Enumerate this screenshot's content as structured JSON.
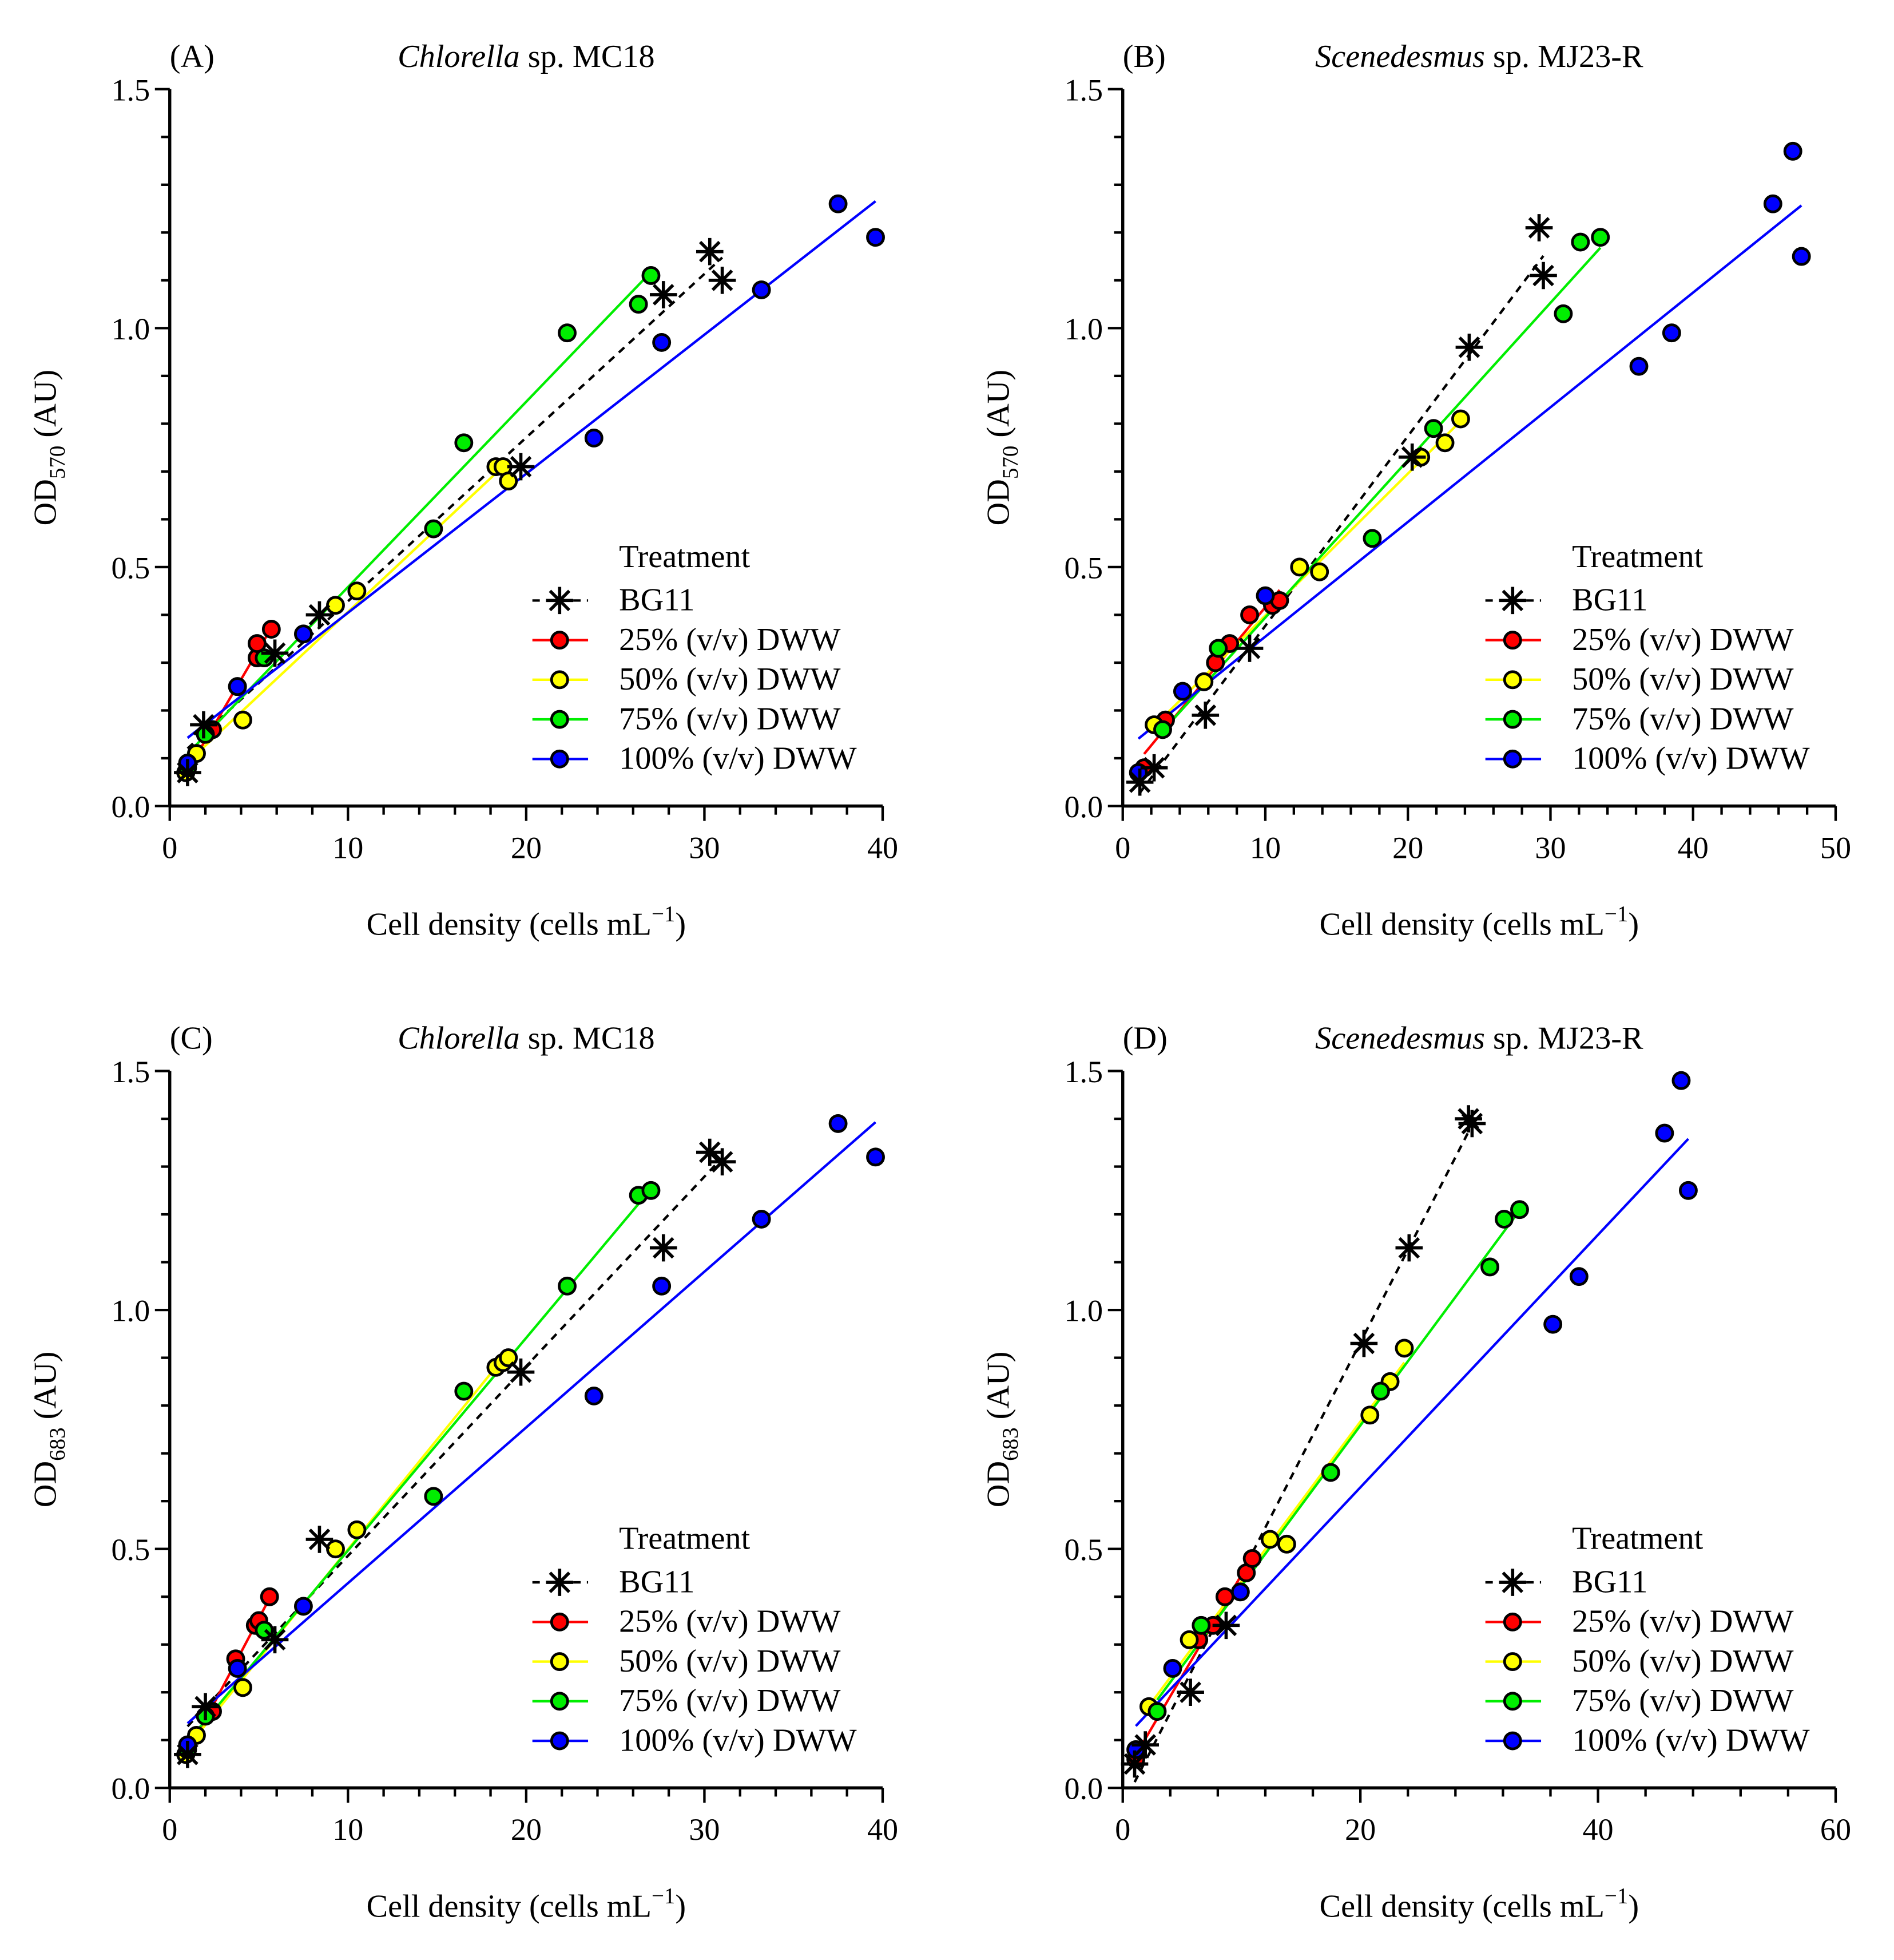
{
  "colors": {
    "BG11": "#000000",
    "25%": "#ff0000",
    "50%": "#ffff00",
    "75%": "#00ee00",
    "100%": "#0000ff"
  },
  "legend": {
    "title": "Treatment",
    "entries": [
      {
        "key": "BG11",
        "label": "BG11",
        "marker": "star",
        "dashed": true
      },
      {
        "key": "25%",
        "label": "25% (v/v) DWW",
        "marker": "circle",
        "dashed": false
      },
      {
        "key": "50%",
        "label": "50% (v/v) DWW",
        "marker": "circle",
        "dashed": false
      },
      {
        "key": "75%",
        "label": "75% (v/v) DWW",
        "marker": "circle",
        "dashed": false
      },
      {
        "key": "100%",
        "label": "100% (v/v) DWW",
        "marker": "circle",
        "dashed": false
      }
    ]
  },
  "chart_data": [
    {
      "type": "scatter",
      "panel": "(A)",
      "title_genus": "Chlorella",
      "title_rest": " sp. MC18",
      "ylabel_main": "OD",
      "ylabel_sub": "570",
      "ylabel_unit": " (AU)",
      "xlabel": "Cell density (cells mL",
      "xlabel_sup": "−1",
      "xlabel_end": ")",
      "xlim": [
        0,
        40
      ],
      "xticks": [
        0,
        10,
        20,
        30,
        40
      ],
      "ylim": [
        0,
        1.5
      ],
      "yticks": [
        "0.0",
        "0.5",
        "1.0",
        "1.5"
      ],
      "series": [
        {
          "name": "BG11",
          "x": [
            1.0,
            1.9,
            5.9,
            8.4,
            19.7,
            27.7,
            30.3,
            31.0
          ],
          "y": [
            0.07,
            0.17,
            0.32,
            0.4,
            0.71,
            1.07,
            1.16,
            1.1
          ]
        },
        {
          "name": "25%",
          "x": [
            0.9,
            2.4,
            3.8,
            4.9,
            4.9,
            5.7
          ],
          "y": [
            0.07,
            0.16,
            0.25,
            0.31,
            0.34,
            0.37
          ]
        },
        {
          "name": "50%",
          "x": [
            0.9,
            1.5,
            4.1,
            9.3,
            10.5,
            18.3,
            18.7,
            19.0
          ],
          "y": [
            0.07,
            0.11,
            0.18,
            0.42,
            0.45,
            0.71,
            0.71,
            0.68
          ]
        },
        {
          "name": "75%",
          "x": [
            1.0,
            2.0,
            5.3,
            14.8,
            16.5,
            22.3,
            26.3,
            27.0
          ],
          "y": [
            0.08,
            0.15,
            0.31,
            0.58,
            0.76,
            0.99,
            1.05,
            1.11
          ]
        },
        {
          "name": "100%",
          "x": [
            1.0,
            3.8,
            7.5,
            23.8,
            27.6,
            33.2,
            37.5,
            39.6
          ],
          "y": [
            0.09,
            0.25,
            0.36,
            0.77,
            0.97,
            1.08,
            1.26,
            1.19
          ]
        }
      ]
    },
    {
      "type": "scatter",
      "panel": "(B)",
      "title_genus": "Scenedesmus",
      "title_rest": " sp. MJ23-R",
      "ylabel_main": "OD",
      "ylabel_sub": "570",
      "ylabel_unit": " (AU)",
      "xlabel": "Cell density (cells mL",
      "xlabel_sup": "−1",
      "xlabel_end": ")",
      "xlim": [
        0,
        50
      ],
      "xticks": [
        0,
        10,
        20,
        30,
        40,
        50
      ],
      "ylim": [
        0,
        1.5
      ],
      "yticks": [
        "0.0",
        "0.5",
        "1.0",
        "1.5"
      ],
      "series": [
        {
          "name": "BG11",
          "x": [
            1.2,
            2.2,
            5.8,
            8.9,
            20.3,
            24.3,
            29.2,
            29.5
          ],
          "y": [
            0.05,
            0.08,
            0.19,
            0.33,
            0.73,
            0.96,
            1.21,
            1.11
          ]
        },
        {
          "name": "25%",
          "x": [
            1.5,
            3.0,
            6.5,
            7.5,
            8.9,
            10.5,
            11.0
          ],
          "y": [
            0.08,
            0.18,
            0.3,
            0.34,
            0.4,
            0.42,
            0.43
          ]
        },
        {
          "name": "50%",
          "x": [
            2.2,
            5.7,
            12.4,
            13.8,
            20.9,
            22.6,
            23.7
          ],
          "y": [
            0.17,
            0.26,
            0.5,
            0.49,
            0.73,
            0.76,
            0.81
          ]
        },
        {
          "name": "75%",
          "x": [
            2.8,
            6.7,
            17.5,
            21.8,
            30.9,
            32.1,
            33.5
          ],
          "y": [
            0.16,
            0.33,
            0.56,
            0.79,
            1.03,
            1.18,
            1.19
          ]
        },
        {
          "name": "100%",
          "x": [
            1.1,
            4.2,
            10.0,
            36.2,
            38.5,
            45.6,
            47.0,
            47.6
          ],
          "y": [
            0.07,
            0.24,
            0.44,
            0.92,
            0.99,
            1.26,
            1.37,
            1.15
          ]
        }
      ]
    },
    {
      "type": "scatter",
      "panel": "(C)",
      "title_genus": "Chlorella",
      "title_rest": " sp. MC18",
      "ylabel_main": "OD",
      "ylabel_sub": "683",
      "ylabel_unit": " (AU)",
      "xlabel": "Cell density (cells mL",
      "xlabel_sup": "−1",
      "xlabel_end": ")",
      "xlim": [
        0,
        40
      ],
      "xticks": [
        0,
        10,
        20,
        30,
        40
      ],
      "ylim": [
        0,
        1.5
      ],
      "yticks": [
        "0.0",
        "0.5",
        "1.0",
        "1.5"
      ],
      "series": [
        {
          "name": "BG11",
          "x": [
            1.0,
            2.0,
            5.9,
            8.4,
            19.7,
            27.7,
            30.3,
            31.0
          ],
          "y": [
            0.07,
            0.17,
            0.31,
            0.52,
            0.87,
            1.13,
            1.33,
            1.31
          ]
        },
        {
          "name": "25%",
          "x": [
            0.9,
            2.4,
            3.7,
            4.8,
            5.0,
            5.6
          ],
          "y": [
            0.07,
            0.16,
            0.27,
            0.34,
            0.35,
            0.4
          ]
        },
        {
          "name": "50%",
          "x": [
            0.9,
            1.5,
            4.1,
            9.3,
            10.5,
            18.3,
            18.7,
            19.0
          ],
          "y": [
            0.07,
            0.11,
            0.21,
            0.5,
            0.54,
            0.88,
            0.89,
            0.9
          ]
        },
        {
          "name": "75%",
          "x": [
            1.0,
            2.0,
            5.3,
            14.8,
            16.5,
            22.3,
            26.3,
            27.0
          ],
          "y": [
            0.08,
            0.15,
            0.33,
            0.61,
            0.83,
            1.05,
            1.24,
            1.25
          ]
        },
        {
          "name": "100%",
          "x": [
            1.0,
            3.8,
            7.5,
            23.8,
            27.6,
            33.2,
            37.5,
            39.6
          ],
          "y": [
            0.09,
            0.25,
            0.38,
            0.82,
            1.05,
            1.19,
            1.39,
            1.32
          ]
        }
      ]
    },
    {
      "type": "scatter",
      "panel": "(D)",
      "title_genus": "Scenedesmus",
      "title_rest": " sp. MJ23-R",
      "ylabel_main": "OD",
      "ylabel_sub": "683",
      "ylabel_unit": " (AU)",
      "xlabel": "Cell density (cells mL",
      "xlabel_sup": "−1",
      "xlabel_end": ")",
      "xlim": [
        0,
        60
      ],
      "xticks": [
        0,
        20,
        40,
        60
      ],
      "ylim": [
        0,
        1.5
      ],
      "yticks": [
        "0.0",
        "0.5",
        "1.0",
        "1.5"
      ],
      "series": [
        {
          "name": "BG11",
          "x": [
            1.0,
            1.9,
            5.7,
            8.7,
            20.3,
            24.1,
            29.1,
            29.4
          ],
          "y": [
            0.05,
            0.09,
            0.2,
            0.34,
            0.93,
            1.13,
            1.4,
            1.39
          ]
        },
        {
          "name": "25%",
          "x": [
            1.1,
            6.4,
            7.6,
            8.6,
            10.4,
            10.9
          ],
          "y": [
            0.06,
            0.31,
            0.34,
            0.4,
            0.45,
            0.48
          ]
        },
        {
          "name": "50%",
          "x": [
            2.2,
            5.6,
            12.4,
            13.8,
            20.8,
            22.5,
            23.7
          ],
          "y": [
            0.17,
            0.31,
            0.52,
            0.51,
            0.78,
            0.85,
            0.92
          ]
        },
        {
          "name": "75%",
          "x": [
            2.9,
            6.6,
            17.5,
            21.7,
            30.9,
            32.1,
            33.4
          ],
          "y": [
            0.16,
            0.34,
            0.66,
            0.83,
            1.09,
            1.19,
            1.21
          ]
        },
        {
          "name": "100%",
          "x": [
            1.1,
            4.2,
            9.9,
            36.2,
            38.4,
            45.6,
            47.0,
            47.6
          ],
          "y": [
            0.08,
            0.25,
            0.41,
            0.97,
            1.07,
            1.37,
            1.48,
            1.25
          ]
        }
      ]
    }
  ]
}
